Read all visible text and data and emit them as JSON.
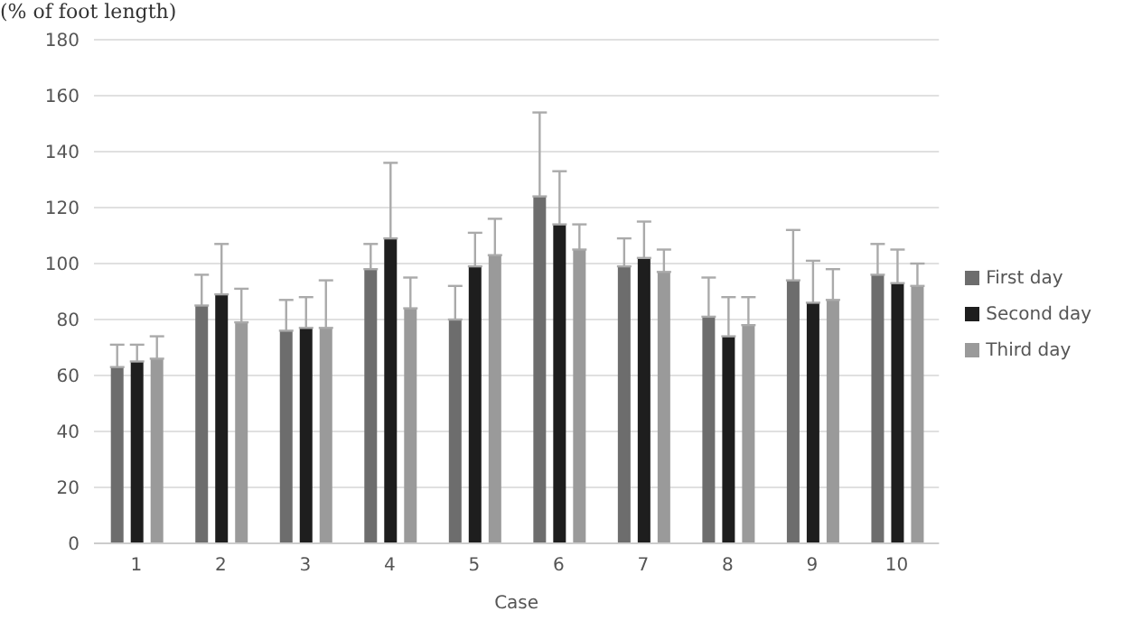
{
  "chart_data": {
    "type": "bar",
    "ylabel": "(% of foot length)",
    "xlabel": "Case",
    "categories": [
      "1",
      "2",
      "3",
      "4",
      "5",
      "6",
      "7",
      "8",
      "9",
      "10"
    ],
    "series": [
      {
        "name": "First day",
        "color": "#6d6d6d",
        "values": [
          63,
          85,
          76,
          98,
          80,
          124,
          99,
          81,
          94,
          96
        ],
        "errors": [
          [
            63,
            71
          ],
          [
            85,
            96
          ],
          [
            76,
            87
          ],
          [
            98,
            107
          ],
          [
            80,
            92
          ],
          [
            124,
            154
          ],
          [
            99,
            109
          ],
          [
            81,
            95
          ],
          [
            94,
            112
          ],
          [
            96,
            107
          ]
        ]
      },
      {
        "name": "Second day",
        "color": "#1e1e1e",
        "values": [
          65,
          89,
          77,
          109,
          99,
          114,
          102,
          74,
          86,
          93
        ],
        "errors": [
          [
            65,
            71
          ],
          [
            89,
            107
          ],
          [
            77,
            88
          ],
          [
            109,
            136
          ],
          [
            99,
            111
          ],
          [
            114,
            133
          ],
          [
            102,
            115
          ],
          [
            74,
            88
          ],
          [
            86,
            101
          ],
          [
            93,
            105
          ]
        ]
      },
      {
        "name": "Third day",
        "color": "#9a9a9a",
        "values": [
          66,
          79,
          77,
          84,
          103,
          105,
          97,
          78,
          87,
          92
        ],
        "errors": [
          [
            66,
            74
          ],
          [
            79,
            91
          ],
          [
            77,
            94
          ],
          [
            84,
            95
          ],
          [
            103,
            116
          ],
          [
            105,
            114
          ],
          [
            97,
            105
          ],
          [
            78,
            88
          ],
          [
            87,
            98
          ],
          [
            92,
            100
          ]
        ]
      }
    ],
    "ylim": [
      0,
      180
    ],
    "yticks": [
      0,
      20,
      40,
      60,
      80,
      100,
      120,
      140,
      160,
      180
    ],
    "grid": "y",
    "legend": "right"
  }
}
